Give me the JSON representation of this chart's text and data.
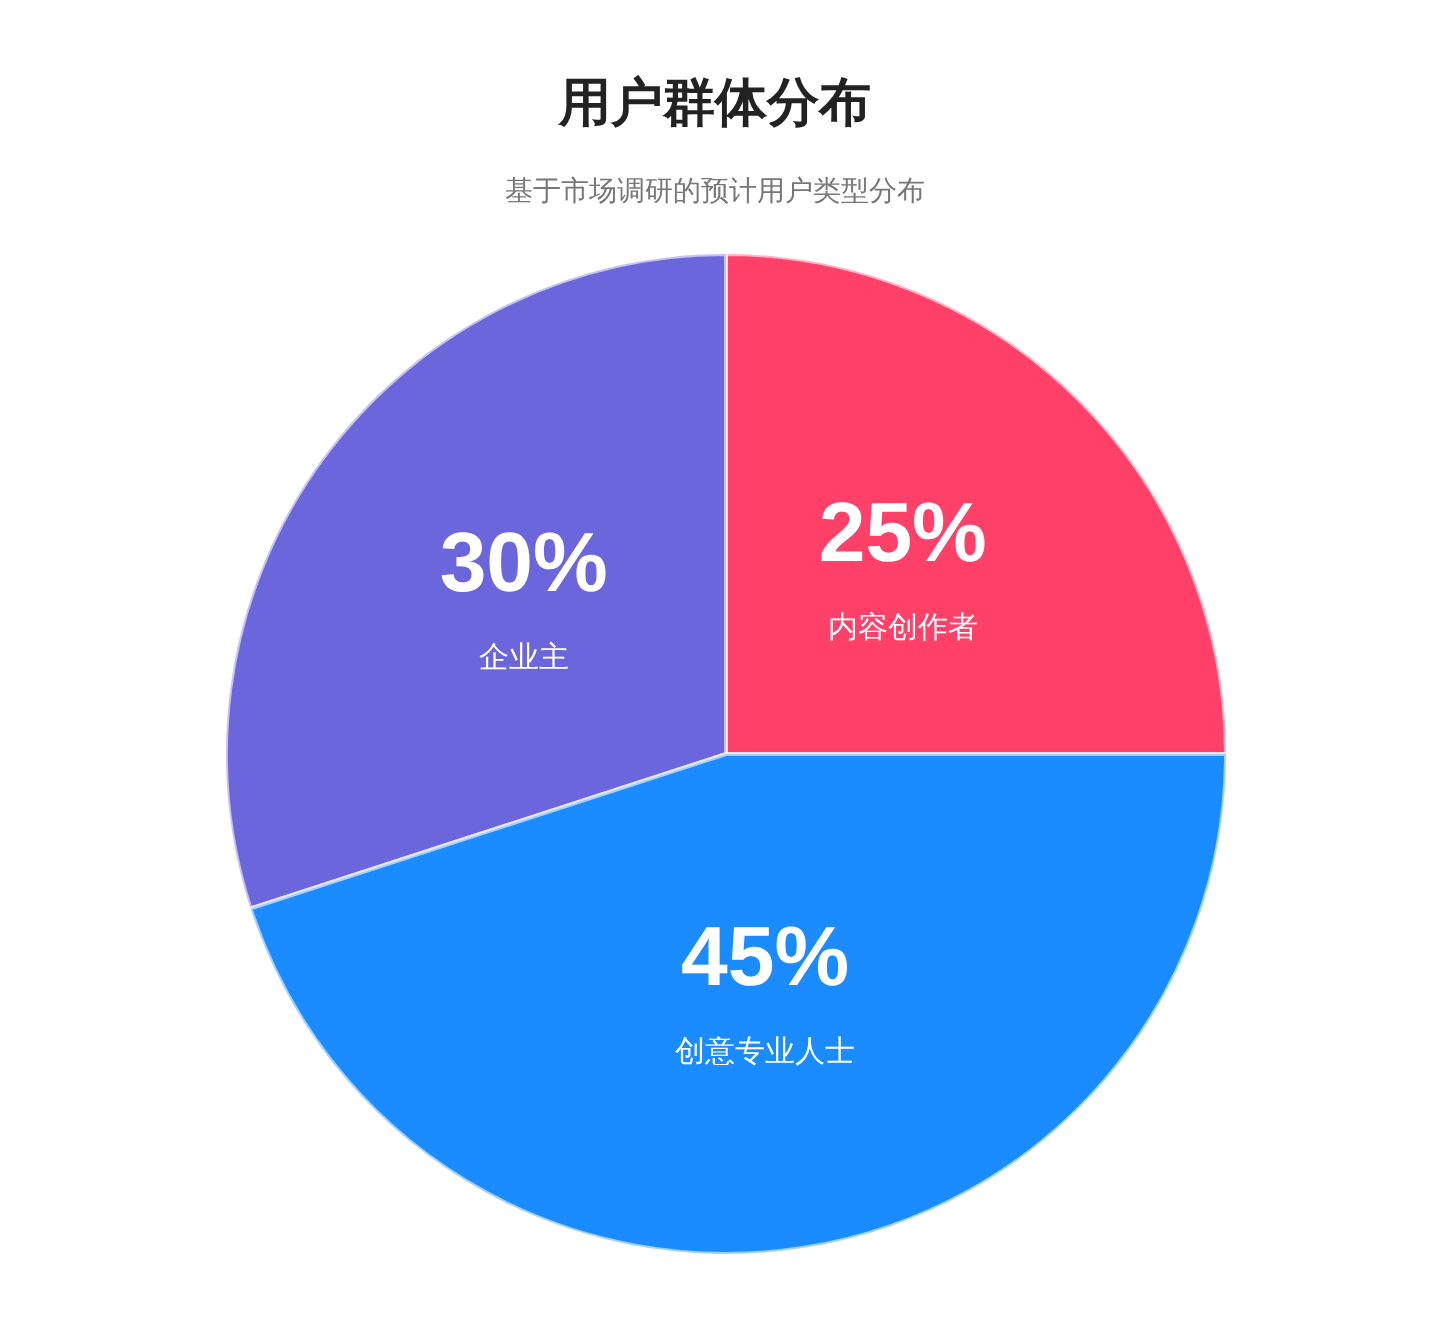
{
  "chart_data": {
    "type": "pie",
    "title": "用户群体分布",
    "subtitle": "基于市场调研的预计用户类型分布",
    "categories": [
      "内容创作者",
      "企业主",
      "创意专业人士"
    ],
    "values": [
      25,
      30,
      45
    ],
    "colors": [
      "#ff4069",
      "#6b66db",
      "#1a8cff"
    ],
    "value_labels": [
      "25%",
      "30%",
      "45%"
    ]
  }
}
